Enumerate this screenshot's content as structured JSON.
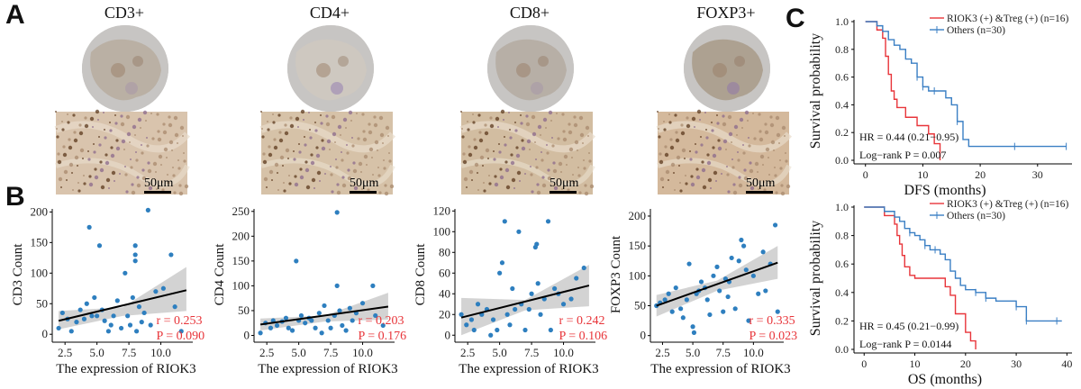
{
  "panels": {
    "A": "A",
    "B": "B",
    "C": "C"
  },
  "ihc": [
    {
      "marker": "CD3+",
      "scale": "50μm"
    },
    {
      "marker": "CD4+",
      "scale": "50μm"
    },
    {
      "marker": "CD8+",
      "scale": "50μm"
    },
    {
      "marker": "FOXP3+",
      "scale": "50μm"
    }
  ],
  "colors": {
    "accent_red": "#e8353a",
    "point_blue": "#2e7fbf",
    "km_blue": "#3a7fc4",
    "band": "#c8c8c8"
  },
  "chart_data": [
    {
      "type": "scatter",
      "id": "cd3",
      "xlabel": "The expression of RIOK3",
      "ylabel": "CD3 Count",
      "xlim": [
        1.5,
        12.5
      ],
      "ylim": [
        -10,
        205
      ],
      "xticks": [
        "2.5",
        "5.0",
        "7.5",
        "10.0"
      ],
      "xtick_values": [
        2.5,
        5.0,
        7.5,
        10.0
      ],
      "yticks": [
        "0",
        "50",
        "100",
        "150",
        "200"
      ],
      "ytick_values": [
        0,
        50,
        100,
        150,
        200
      ],
      "fit": {
        "x": [
          2.0,
          12.0
        ],
        "y": [
          22,
          72
        ]
      },
      "band": {
        "lo": [
          8,
          30,
          38
        ],
        "hi": [
          38,
          44,
          110
        ]
      },
      "annotation": [
        "r = 0.253",
        "P = 0.090"
      ],
      "points": [
        [
          2.0,
          10
        ],
        [
          2.3,
          35
        ],
        [
          2.7,
          25
        ],
        [
          3.0,
          5
        ],
        [
          3.4,
          20
        ],
        [
          3.7,
          40
        ],
        [
          4.0,
          25
        ],
        [
          4.2,
          50
        ],
        [
          4.4,
          175
        ],
        [
          4.6,
          30
        ],
        [
          4.8,
          60
        ],
        [
          5.0,
          30
        ],
        [
          5.2,
          145
        ],
        [
          5.4,
          40
        ],
        [
          5.6,
          22
        ],
        [
          5.9,
          5
        ],
        [
          6.1,
          15
        ],
        [
          6.3,
          30
        ],
        [
          6.6,
          55
        ],
        [
          6.9,
          10
        ],
        [
          7.2,
          100
        ],
        [
          7.4,
          30
        ],
        [
          7.6,
          15
        ],
        [
          7.8,
          60
        ],
        [
          8.0,
          130
        ],
        [
          8.0,
          120
        ],
        [
          8.0,
          145
        ],
        [
          8.1,
          5
        ],
        [
          8.3,
          45
        ],
        [
          8.5,
          20
        ],
        [
          8.7,
          35
        ],
        [
          9.0,
          203
        ],
        [
          9.2,
          15
        ],
        [
          9.6,
          70
        ],
        [
          10.2,
          75
        ],
        [
          10.8,
          130
        ],
        [
          11.1,
          45
        ],
        [
          11.6,
          5
        ]
      ]
    },
    {
      "type": "scatter",
      "id": "cd4",
      "xlabel": "The expression of RIOK3",
      "ylabel": "CD4 Count",
      "xlim": [
        1.5,
        12.5
      ],
      "ylim": [
        -10,
        255
      ],
      "xticks": [
        "2.5",
        "5.0",
        "7.5",
        "10.0"
      ],
      "xtick_values": [
        2.5,
        5.0,
        7.5,
        10.0
      ],
      "yticks": [
        "0",
        "50",
        "100",
        "150",
        "200",
        "250"
      ],
      "ytick_values": [
        0,
        50,
        100,
        150,
        200,
        250
      ],
      "fit": {
        "x": [
          2.0,
          12.0
        ],
        "y": [
          22,
          58
        ]
      },
      "band": {
        "lo": [
          10,
          28,
          32
        ],
        "hi": [
          34,
          40,
          86
        ]
      },
      "annotation": [
        "r = 0.203",
        "P = 0.176"
      ],
      "points": [
        [
          2.0,
          5
        ],
        [
          2.4,
          25
        ],
        [
          2.8,
          15
        ],
        [
          3.0,
          30
        ],
        [
          3.3,
          20
        ],
        [
          3.7,
          28
        ],
        [
          4.0,
          35
        ],
        [
          4.2,
          15
        ],
        [
          4.5,
          10
        ],
        [
          4.8,
          150
        ],
        [
          5.0,
          30
        ],
        [
          5.2,
          40
        ],
        [
          5.5,
          25
        ],
        [
          5.8,
          35
        ],
        [
          6.0,
          30
        ],
        [
          6.3,
          15
        ],
        [
          6.6,
          45
        ],
        [
          6.8,
          5
        ],
        [
          7.0,
          60
        ],
        [
          7.3,
          30
        ],
        [
          7.5,
          15
        ],
        [
          7.8,
          40
        ],
        [
          8.0,
          248
        ],
        [
          8.0,
          100
        ],
        [
          8.2,
          50
        ],
        [
          8.4,
          20
        ],
        [
          8.7,
          10
        ],
        [
          9.0,
          55
        ],
        [
          9.2,
          30
        ],
        [
          9.5,
          45
        ],
        [
          10.0,
          65
        ],
        [
          10.8,
          100
        ],
        [
          11.0,
          40
        ],
        [
          11.6,
          20
        ]
      ]
    },
    {
      "type": "scatter",
      "id": "cd8",
      "xlabel": "The expression of RIOK3",
      "ylabel": "CD8 Count",
      "xlim": [
        1.5,
        12.5
      ],
      "ylim": [
        -5,
        122
      ],
      "xticks": [
        "2.5",
        "5.0",
        "7.5",
        "10.0"
      ],
      "xtick_values": [
        2.5,
        5.0,
        7.5,
        10.0
      ],
      "yticks": [
        "0",
        "20",
        "40",
        "60",
        "80",
        "100",
        "120"
      ],
      "ytick_values": [
        0,
        20,
        40,
        60,
        80,
        100,
        120
      ],
      "fit": {
        "x": [
          2.0,
          12.0
        ],
        "y": [
          17,
          48
        ]
      },
      "band": {
        "lo": [
          0,
          24,
          28
        ],
        "hi": [
          36,
          34,
          68
        ]
      },
      "annotation": [
        "r = 0.242",
        "P = 0.106"
      ],
      "points": [
        [
          2.0,
          20
        ],
        [
          2.4,
          10
        ],
        [
          2.8,
          15
        ],
        [
          3.0,
          5
        ],
        [
          3.3,
          30
        ],
        [
          3.6,
          20
        ],
        [
          4.0,
          25
        ],
        [
          4.3,
          0
        ],
        [
          4.5,
          15
        ],
        [
          4.8,
          5
        ],
        [
          5.0,
          60
        ],
        [
          5.2,
          70
        ],
        [
          5.4,
          110
        ],
        [
          5.6,
          20
        ],
        [
          5.8,
          10
        ],
        [
          6.0,
          45
        ],
        [
          6.2,
          25
        ],
        [
          6.5,
          100
        ],
        [
          6.7,
          30
        ],
        [
          7.0,
          5
        ],
        [
          7.3,
          25
        ],
        [
          7.5,
          40
        ],
        [
          7.8,
          85
        ],
        [
          7.9,
          88
        ],
        [
          8.0,
          50
        ],
        [
          8.2,
          20
        ],
        [
          8.5,
          35
        ],
        [
          8.8,
          110
        ],
        [
          9.0,
          5
        ],
        [
          9.3,
          45
        ],
        [
          9.6,
          40
        ],
        [
          10.0,
          30
        ],
        [
          10.6,
          35
        ],
        [
          11.0,
          55
        ],
        [
          11.6,
          65
        ]
      ]
    },
    {
      "type": "scatter",
      "id": "foxp3",
      "xlabel": "The expression of RIOK3",
      "ylabel": "FOXP3 Count",
      "xlim": [
        1.5,
        12.5
      ],
      "ylim": [
        -8,
        212
      ],
      "xticks": [
        "2.5",
        "5.0",
        "7.5",
        "10.0"
      ],
      "xtick_values": [
        2.5,
        5.0,
        7.5,
        10.0
      ],
      "yticks": [
        "0",
        "50",
        "100",
        "150",
        "200"
      ],
      "ytick_values": [
        0,
        50,
        100,
        150,
        200
      ],
      "fit": {
        "x": [
          2.0,
          12.0
        ],
        "y": [
          50,
          122
        ]
      },
      "band": {
        "lo": [
          32,
          75,
          95
        ],
        "hi": [
          68,
          92,
          150
        ]
      },
      "annotation": [
        "r = 0.335",
        "P = 0.023"
      ],
      "points": [
        [
          2.0,
          50
        ],
        [
          2.3,
          55
        ],
        [
          2.7,
          60
        ],
        [
          3.0,
          70
        ],
        [
          3.3,
          40
        ],
        [
          3.6,
          80
        ],
        [
          4.0,
          45
        ],
        [
          4.2,
          30
        ],
        [
          4.5,
          60
        ],
        [
          4.7,
          120
        ],
        [
          5.0,
          15
        ],
        [
          5.1,
          5
        ],
        [
          5.3,
          70
        ],
        [
          5.5,
          75
        ],
        [
          5.7,
          90
        ],
        [
          6.0,
          80
        ],
        [
          6.2,
          60
        ],
        [
          6.4,
          35
        ],
        [
          6.7,
          100
        ],
        [
          7.0,
          115
        ],
        [
          7.2,
          75
        ],
        [
          7.5,
          40
        ],
        [
          7.7,
          95
        ],
        [
          7.9,
          65
        ],
        [
          8.0,
          90
        ],
        [
          8.2,
          130
        ],
        [
          8.5,
          45
        ],
        [
          8.8,
          125
        ],
        [
          9.0,
          160
        ],
        [
          9.2,
          150
        ],
        [
          9.4,
          110
        ],
        [
          9.6,
          25
        ],
        [
          10.0,
          100
        ],
        [
          10.4,
          70
        ],
        [
          10.8,
          140
        ],
        [
          11.0,
          75
        ],
        [
          11.4,
          120
        ],
        [
          11.8,
          185
        ],
        [
          12.0,
          40
        ]
      ]
    },
    {
      "type": "line",
      "id": "km-dfs",
      "xlabel": "DFS (months)",
      "ylabel": "Survival probability",
      "xlim": [
        -2,
        36
      ],
      "ylim": [
        0,
        1.0
      ],
      "xticks": [
        "0",
        "10",
        "20",
        "30"
      ],
      "xtick_values": [
        0,
        10,
        20,
        30
      ],
      "yticks": [
        "0.0",
        "0.2",
        "0.4",
        "0.6",
        "0.8",
        "1.0"
      ],
      "ytick_values": [
        0,
        0.2,
        0.4,
        0.6,
        0.8,
        1.0
      ],
      "legend": [
        "RIOK3 (+) &Treg (+) (n=16)",
        "Others (n=30)"
      ],
      "annotation": [
        "HR = 0.44 (0.21−0.95)",
        "Log−rank P = 0.007"
      ],
      "series": [
        {
          "name": "RIOK3 (+) &Treg (+) (n=16)",
          "x": [
            0,
            2,
            3,
            3.5,
            4,
            4.5,
            5,
            5.5,
            7,
            9,
            11,
            12,
            13
          ],
          "y": [
            1.0,
            0.94,
            0.88,
            0.75,
            0.62,
            0.5,
            0.44,
            0.38,
            0.31,
            0.25,
            0.19,
            0.12,
            0
          ]
        },
        {
          "name": "Others (n=30)",
          "x": [
            0,
            2,
            3,
            4,
            5,
            6,
            7,
            8,
            9,
            10,
            11,
            12,
            14,
            15,
            16,
            17,
            18,
            26,
            35
          ],
          "y": [
            1.0,
            0.97,
            0.93,
            0.87,
            0.83,
            0.8,
            0.73,
            0.7,
            0.6,
            0.53,
            0.5,
            0.5,
            0.45,
            0.4,
            0.28,
            0.15,
            0.1,
            0.1,
            0.1
          ]
        }
      ],
      "censor": {
        "series": 1,
        "x": [
          9,
          10,
          12,
          16,
          26,
          35
        ],
        "y": [
          0.6,
          0.53,
          0.5,
          0.28,
          0.1,
          0.1
        ]
      }
    },
    {
      "type": "line",
      "id": "km-os",
      "xlabel": "OS (months)",
      "ylabel": "Survival probability",
      "xlim": [
        -2,
        41
      ],
      "ylim": [
        0,
        1.0
      ],
      "xticks": [
        "0",
        "10",
        "20",
        "30",
        "40"
      ],
      "xtick_values": [
        0,
        10,
        20,
        30,
        40
      ],
      "yticks": [
        "0.0",
        "0.2",
        "0.4",
        "0.6",
        "0.8",
        "1.0"
      ],
      "ytick_values": [
        0,
        0.2,
        0.4,
        0.6,
        0.8,
        1.0
      ],
      "legend": [
        "RIOK3 (+) &Treg (+) (n=16)",
        "Others (n=30)"
      ],
      "annotation": [
        "HR = 0.45 (0.21−0.99)",
        "Log−rank P = 0.0144"
      ],
      "series": [
        {
          "name": "RIOK3 (+) &Treg (+) (n=16)",
          "x": [
            0,
            4,
            6,
            6.5,
            7,
            7.5,
            8,
            9,
            10,
            12,
            16,
            17,
            18,
            20,
            21,
            22
          ],
          "y": [
            1.0,
            0.94,
            0.88,
            0.8,
            0.74,
            0.66,
            0.58,
            0.52,
            0.5,
            0.5,
            0.44,
            0.38,
            0.25,
            0.12,
            0.06,
            0
          ]
        },
        {
          "name": "Others (n=30)",
          "x": [
            0,
            4,
            6,
            7,
            8,
            9,
            10,
            11,
            12,
            13,
            15,
            16,
            17,
            18,
            19,
            20,
            22,
            24,
            26,
            28,
            30,
            32,
            34,
            39
          ],
          "y": [
            1.0,
            0.97,
            0.93,
            0.9,
            0.85,
            0.82,
            0.8,
            0.77,
            0.73,
            0.7,
            0.67,
            0.63,
            0.55,
            0.5,
            0.45,
            0.42,
            0.4,
            0.36,
            0.34,
            0.34,
            0.3,
            0.2,
            0.2,
            0.2
          ]
        }
      ],
      "censor": {
        "series": 1,
        "x": [
          9,
          12,
          14,
          22,
          24,
          30,
          32,
          38
        ],
        "y": [
          0.82,
          0.73,
          0.7,
          0.4,
          0.36,
          0.3,
          0.2,
          0.2
        ]
      }
    }
  ]
}
